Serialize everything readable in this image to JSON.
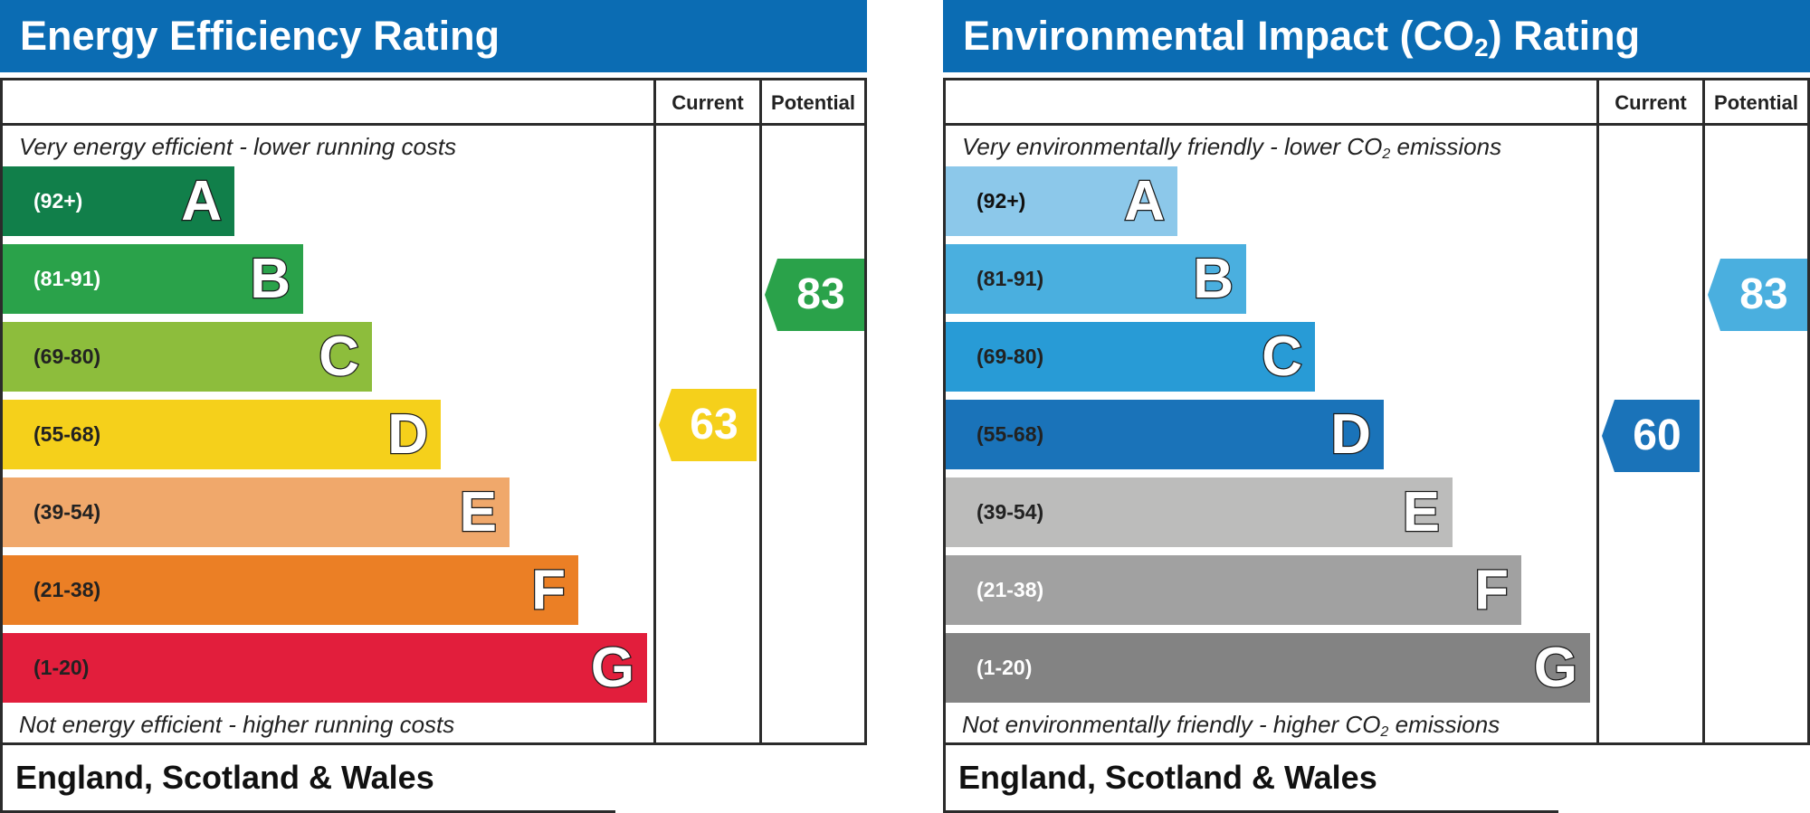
{
  "chart_data": [
    {
      "type": "bar",
      "title": "Energy Efficiency Rating",
      "header_color": "#0b6cb3",
      "columns": [
        "Current",
        "Potential"
      ],
      "top_note": "Very energy efficient - lower running costs",
      "bottom_note": "Not energy efficient - higher running costs",
      "bands": [
        {
          "letter": "A",
          "range": "(92+)",
          "color": "#117f4a",
          "text_color": "#ffffff"
        },
        {
          "letter": "B",
          "range": "(81-91)",
          "color": "#2aa24a",
          "text_color": "#ffffff"
        },
        {
          "letter": "C",
          "range": "(69-80)",
          "color": "#8dbd3c",
          "text_color": "#222222"
        },
        {
          "letter": "D",
          "range": "(55-68)",
          "color": "#f5d01b",
          "text_color": "#222222"
        },
        {
          "letter": "E",
          "range": "(39-54)",
          "color": "#f0a86b",
          "text_color": "#222222"
        },
        {
          "letter": "F",
          "range": "(21-38)",
          "color": "#eb7f25",
          "text_color": "#222222"
        },
        {
          "letter": "G",
          "range": "(1-20)",
          "color": "#e21e3c",
          "text_color": "#222222"
        }
      ],
      "current": {
        "value": 63,
        "band": "D",
        "color": "#f5d01b"
      },
      "potential": {
        "value": 83,
        "band": "B",
        "color": "#2aa24a"
      },
      "footer": "England, Scotland & Wales"
    },
    {
      "type": "bar",
      "title_parts": [
        "Environmental Impact (CO",
        "2",
        ") Rating"
      ],
      "header_color": "#0b6cb3",
      "columns": [
        "Current",
        "Potential"
      ],
      "top_note_parts": [
        "Very environmentally friendly - lower CO",
        "2",
        " emissions"
      ],
      "bottom_note_parts": [
        "Not environmentally friendly - higher CO",
        "2",
        " emissions"
      ],
      "bands": [
        {
          "letter": "A",
          "range": "(92+)",
          "color": "#8cc8ea",
          "text_color": "#111111"
        },
        {
          "letter": "B",
          "range": "(81-91)",
          "color": "#4aafdf",
          "text_color": "#222222"
        },
        {
          "letter": "C",
          "range": "(69-80)",
          "color": "#289bd6",
          "text_color": "#222222"
        },
        {
          "letter": "D",
          "range": "(55-68)",
          "color": "#1a73b9",
          "text_color": "#222222"
        },
        {
          "letter": "E",
          "range": "(39-54)",
          "color": "#bcbcbb",
          "text_color": "#222222"
        },
        {
          "letter": "F",
          "range": "(21-38)",
          "color": "#a1a1a1",
          "text_color": "#ffffff"
        },
        {
          "letter": "G",
          "range": "(1-20)",
          "color": "#838383",
          "text_color": "#ffffff"
        }
      ],
      "current": {
        "value": 60,
        "band": "D",
        "color": "#1a73b9"
      },
      "potential": {
        "value": 83,
        "band": "B",
        "color": "#4aafdf"
      },
      "footer": "England, Scotland & Wales"
    }
  ]
}
